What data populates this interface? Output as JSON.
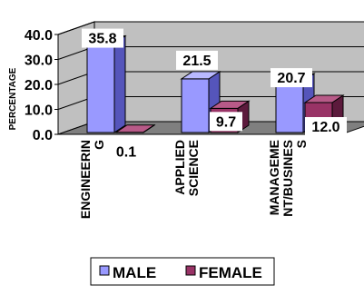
{
  "chart_data": {
    "type": "bar",
    "title": "",
    "xlabel": "",
    "ylabel": "PERCENTAGE",
    "ylim": [
      0,
      40
    ],
    "yticks": [
      "0.0",
      "10.0",
      "20.0",
      "30.0",
      "40.0"
    ],
    "categories": [
      "ENGINEERING",
      "APPLIED SCIENCE",
      "MANAGEMENT/BUSINESS"
    ],
    "category_label_lines": [
      [
        "ENGINEERIN",
        "G"
      ],
      [
        "APPLIED",
        "SCIENCE"
      ],
      [
        "MANAGEME",
        "NT/BUSINES",
        "S"
      ]
    ],
    "series": [
      {
        "name": "MALE",
        "values": [
          35.8,
          21.5,
          20.7
        ],
        "labels": [
          "35.8",
          "21.5",
          "20.7"
        ]
      },
      {
        "name": "FEMALE",
        "values": [
          0.1,
          9.7,
          12.0
        ],
        "labels": [
          "0.1",
          "9.7",
          "12.0"
        ]
      }
    ],
    "grid": true,
    "legend_position": "bottom",
    "style": "3d-column",
    "colors": {
      "male_front": "#9999ff",
      "male_side": "#5555bb",
      "male_top": "#b9b9ff",
      "female_front": "#993366",
      "female_side": "#5c1a3c",
      "female_top": "#b85a88",
      "back_wall": "#c0c0c0",
      "floor": "#7f7f7f"
    }
  }
}
